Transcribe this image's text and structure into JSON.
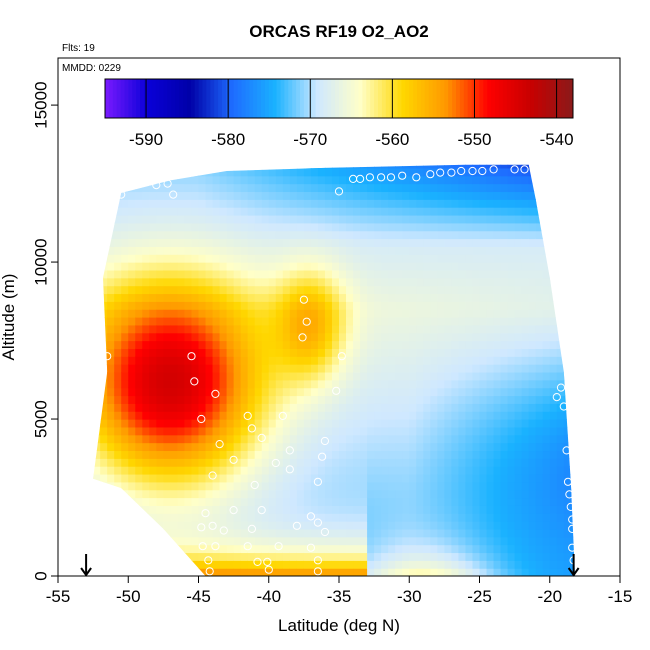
{
  "chart_data": {
    "type": "heatmap",
    "title": "ORCAS RF19 O2_AO2",
    "annotations": {
      "flights": "Flts: 19",
      "date": "MMDD: 0229"
    },
    "xlabel": "Latitude (deg N)",
    "ylabel": "Altitude (m)",
    "xlim": [
      -55,
      -15
    ],
    "ylim": [
      0,
      16500
    ],
    "x_ticks": [
      -55,
      -50,
      -45,
      -40,
      -35,
      -30,
      -25,
      -20,
      -15
    ],
    "y_ticks": [
      0,
      5000,
      10000,
      15000
    ],
    "colorbar": {
      "min": -595,
      "max": -538,
      "ticks": [
        -590,
        -580,
        -570,
        -560,
        -550,
        -540
      ],
      "colors": [
        "#7a1aff",
        "#0a00d8",
        "#0000a8",
        "#1e6cff",
        "#1ab2ff",
        "#cfe8ff",
        "#ffffc8",
        "#ffd700",
        "#ff9900",
        "#ff0000",
        "#c80000",
        "#8b1a1a"
      ]
    },
    "grid": false,
    "domain_outline": [
      [
        -50.5,
        12200
      ],
      [
        -47,
        12600
      ],
      [
        -43,
        12900
      ],
      [
        -36,
        13000
      ],
      [
        -26,
        13100
      ],
      [
        -21.5,
        13100
      ],
      [
        -21,
        12000
      ],
      [
        -20,
        9500
      ],
      [
        -19,
        6500
      ],
      [
        -18.5,
        3000
      ],
      [
        -18.2,
        0
      ],
      [
        -44.5,
        0
      ],
      [
        -47.5,
        1500
      ],
      [
        -50.5,
        2800
      ],
      [
        -52.5,
        3100
      ],
      [
        -51.5,
        6500
      ],
      [
        -51.8,
        9500
      ]
    ],
    "observed_points": [
      {
        "x": -50.5,
        "y": 12150
      },
      {
        "x": -48,
        "y": 12450
      },
      {
        "x": -47.2,
        "y": 12500
      },
      {
        "x": -46.8,
        "y": 12150
      },
      {
        "x": -35,
        "y": 12250
      },
      {
        "x": -34,
        "y": 12650
      },
      {
        "x": -33.5,
        "y": 12650
      },
      {
        "x": -32.8,
        "y": 12700
      },
      {
        "x": -32,
        "y": 12700
      },
      {
        "x": -31.3,
        "y": 12700
      },
      {
        "x": -30.5,
        "y": 12750
      },
      {
        "x": -29.5,
        "y": 12700
      },
      {
        "x": -28.5,
        "y": 12800
      },
      {
        "x": -27.8,
        "y": 12850
      },
      {
        "x": -27,
        "y": 12850
      },
      {
        "x": -26.3,
        "y": 12900
      },
      {
        "x": -25.5,
        "y": 12900
      },
      {
        "x": -24.8,
        "y": 12900
      },
      {
        "x": -24,
        "y": 12950
      },
      {
        "x": -22.5,
        "y": 12950
      },
      {
        "x": -21.8,
        "y": 12950
      },
      {
        "x": -37.5,
        "y": 8800
      },
      {
        "x": -37.3,
        "y": 8100
      },
      {
        "x": -37.6,
        "y": 7600
      },
      {
        "x": -51.5,
        "y": 7000
      },
      {
        "x": -45.5,
        "y": 7000
      },
      {
        "x": -34.8,
        "y": 7000
      },
      {
        "x": -52,
        "y": 6300
      },
      {
        "x": -45.3,
        "y": 6200
      },
      {
        "x": -43.8,
        "y": 5800
      },
      {
        "x": -35.2,
        "y": 5900
      },
      {
        "x": -52.2,
        "y": 5800
      },
      {
        "x": -44.8,
        "y": 5000
      },
      {
        "x": -41.5,
        "y": 5100
      },
      {
        "x": -39,
        "y": 5100
      },
      {
        "x": -52.5,
        "y": 5000
      },
      {
        "x": -41.2,
        "y": 4700
      },
      {
        "x": -40.5,
        "y": 4400
      },
      {
        "x": -43.5,
        "y": 4200
      },
      {
        "x": -36,
        "y": 4300
      },
      {
        "x": -36.2,
        "y": 3800
      },
      {
        "x": -38.5,
        "y": 4000
      },
      {
        "x": -39.5,
        "y": 3600
      },
      {
        "x": -42.5,
        "y": 3700
      },
      {
        "x": -44,
        "y": 3200
      },
      {
        "x": -41,
        "y": 2900
      },
      {
        "x": -36.5,
        "y": 3000
      },
      {
        "x": -38.5,
        "y": 3400
      },
      {
        "x": -44.5,
        "y": 2000
      },
      {
        "x": -42.5,
        "y": 2100
      },
      {
        "x": -40.5,
        "y": 2100
      },
      {
        "x": -37,
        "y": 1900
      },
      {
        "x": -36.5,
        "y": 1700
      },
      {
        "x": -44,
        "y": 1600
      },
      {
        "x": -38,
        "y": 1600
      },
      {
        "x": -36,
        "y": 1400
      },
      {
        "x": -44.8,
        "y": 1550
      },
      {
        "x": -43.2,
        "y": 1450
      },
      {
        "x": -41.2,
        "y": 1500
      },
      {
        "x": -44.7,
        "y": 950
      },
      {
        "x": -43.8,
        "y": 950
      },
      {
        "x": -41.5,
        "y": 950
      },
      {
        "x": -39.3,
        "y": 950
      },
      {
        "x": -37,
        "y": 900
      },
      {
        "x": -44.3,
        "y": 500
      },
      {
        "x": -40.8,
        "y": 450
      },
      {
        "x": -40.1,
        "y": 450
      },
      {
        "x": -36.5,
        "y": 500
      },
      {
        "x": -44.2,
        "y": 150
      },
      {
        "x": -40,
        "y": 200
      },
      {
        "x": -36.5,
        "y": 150
      },
      {
        "x": -19.2,
        "y": 6000
      },
      {
        "x": -19.5,
        "y": 5700
      },
      {
        "x": -19,
        "y": 5400
      },
      {
        "x": -18.8,
        "y": 4000
      },
      {
        "x": -18.7,
        "y": 3000
      },
      {
        "x": -18.6,
        "y": 2600
      },
      {
        "x": -18.5,
        "y": 2200
      },
      {
        "x": -18.4,
        "y": 1800
      },
      {
        "x": -18.4,
        "y": 1500
      },
      {
        "x": -18.4,
        "y": 900
      },
      {
        "x": -18.3,
        "y": 500
      }
    ],
    "markers": [
      {
        "x": -53,
        "y": 0
      },
      {
        "x": -18.3,
        "y": 0
      }
    ]
  }
}
